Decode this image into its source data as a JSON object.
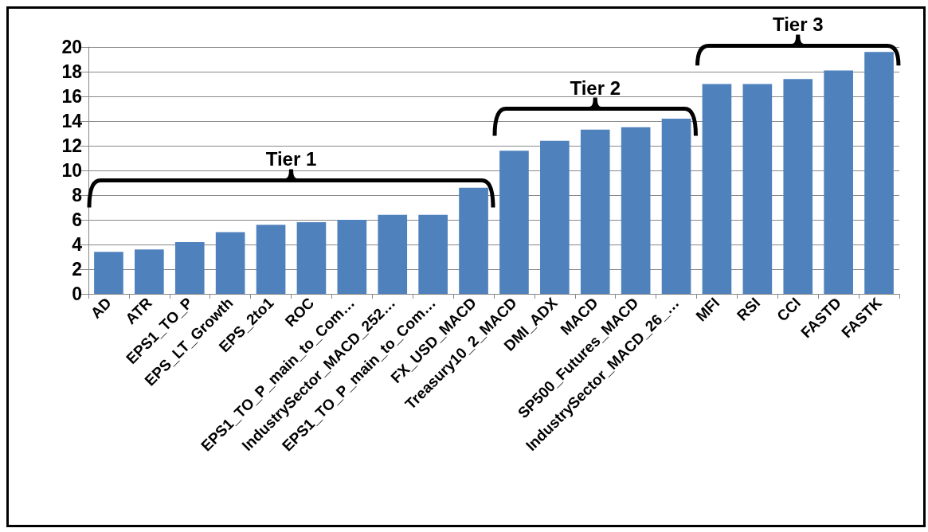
{
  "chart_data": {
    "type": "bar",
    "categories": [
      "AD",
      "ATR",
      "EPS1_TO_P",
      "EPS_LT_Growth",
      "EPS_2to1",
      "ROC",
      "EPS1_TO_P_main_to_Com…",
      "IndustrySector_MACD_252…",
      "EPS1_TO_P_main_to_Com…",
      "FX_USD_MACD",
      "Treasury10_2_MACD",
      "DMI_ADX",
      "MACD",
      "SP500_Futures_MACD",
      "IndustrySector_MACD_26_…",
      "MFI",
      "RSI",
      "CCI",
      "FASTD",
      "FASTK"
    ],
    "values": [
      3.4,
      3.6,
      4.2,
      5.0,
      5.6,
      5.8,
      6.0,
      6.4,
      6.4,
      8.6,
      11.6,
      12.4,
      13.3,
      13.5,
      14.2,
      17.0,
      17.0,
      17.4,
      18.1,
      19.6
    ],
    "color": "#4f81bd",
    "ylim": [
      0,
      20
    ],
    "yticks": [
      0,
      2,
      4,
      6,
      8,
      10,
      12,
      14,
      16,
      18,
      20
    ],
    "grid": "y",
    "annotations": [
      "Tier 1",
      "Tier 2",
      "Tier 3"
    ]
  }
}
